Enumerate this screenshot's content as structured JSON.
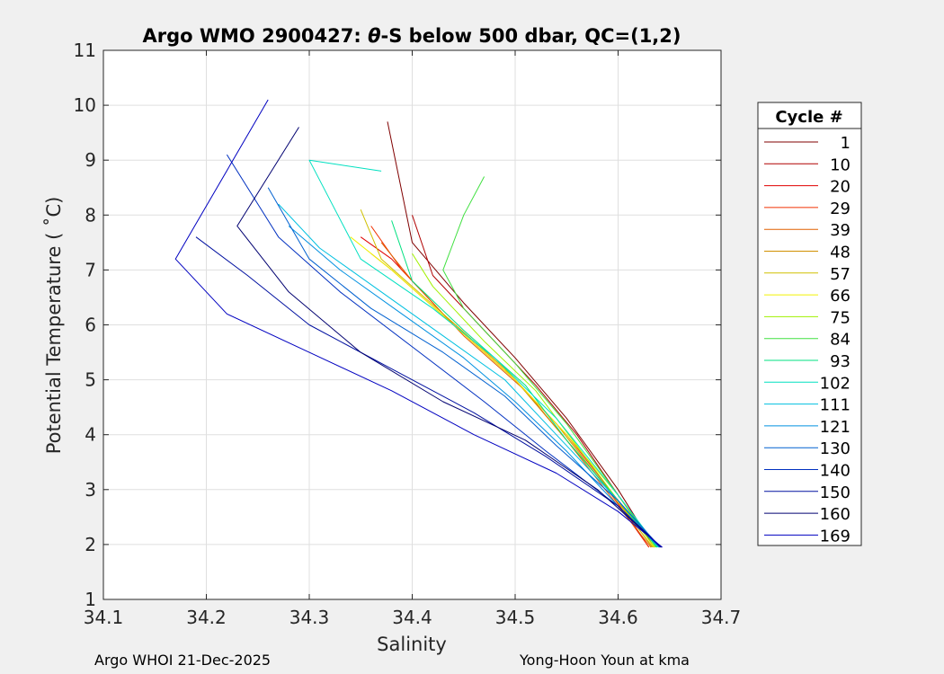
{
  "chart_data": {
    "type": "line",
    "title_parts": {
      "prefix": "Argo WMO 2900427: ",
      "theta": "θ",
      "suffix": "-S below 500 dbar,  QC=(1,2)"
    },
    "xlabel": "Salinity",
    "ylabel": "Potential Temperature ( ˚C)",
    "xlim": [
      34.1,
      34.7
    ],
    "ylim": [
      1,
      11
    ],
    "xticks": [
      34.1,
      34.2,
      34.3,
      34.4,
      34.5,
      34.6,
      34.7
    ],
    "xtick_labels": [
      "34.1",
      "34.2",
      "34.3",
      "34.4",
      "34.5",
      "34.6",
      "34.7"
    ],
    "yticks": [
      1,
      2,
      3,
      4,
      5,
      6,
      7,
      8,
      9,
      10,
      11
    ],
    "ytick_labels": [
      "1",
      "2",
      "3",
      "4",
      "5",
      "6",
      "7",
      "8",
      "9",
      "10",
      "11"
    ],
    "grid": true,
    "legend_position": "right-outside",
    "legend": {
      "title": "Cycle #",
      "entries": [
        {
          "label": "1",
          "color": "#800000"
        },
        {
          "label": "10",
          "color": "#b00000"
        },
        {
          "label": "20",
          "color": "#e00000"
        },
        {
          "label": "29",
          "color": "#f03000"
        },
        {
          "label": "39",
          "color": "#e06000"
        },
        {
          "label": "48",
          "color": "#d09000"
        },
        {
          "label": "57",
          "color": "#d0c000"
        },
        {
          "label": "66",
          "color": "#f0f000"
        },
        {
          "label": "75",
          "color": "#a0f000"
        },
        {
          "label": "84",
          "color": "#40e040"
        },
        {
          "label": "93",
          "color": "#00e080"
        },
        {
          "label": "102",
          "color": "#00e0c0"
        },
        {
          "label": "111",
          "color": "#00c0e0"
        },
        {
          "label": "121",
          "color": "#0090e0"
        },
        {
          "label": "130",
          "color": "#0060d0"
        },
        {
          "label": "140",
          "color": "#0030c0"
        },
        {
          "label": "150",
          "color": "#0010a0"
        },
        {
          "label": "160",
          "color": "#000070"
        },
        {
          "label": "169",
          "color": "#0000c0"
        }
      ]
    },
    "series": [
      {
        "name": "1",
        "color": "#800000",
        "x": [
          34.376,
          34.4,
          34.45,
          34.5,
          34.55,
          34.6,
          34.635
        ],
        "y": [
          9.7,
          7.5,
          6.4,
          5.4,
          4.3,
          3.0,
          1.95
        ]
      },
      {
        "name": "10",
        "color": "#b00000",
        "x": [
          34.4,
          34.42,
          34.47,
          34.52,
          34.56,
          34.6,
          34.635
        ],
        "y": [
          8.0,
          6.9,
          5.9,
          4.9,
          4.0,
          2.9,
          1.95
        ]
      },
      {
        "name": "20",
        "color": "#e00000",
        "x": [
          34.35,
          34.38,
          34.43,
          34.49,
          34.54,
          34.59,
          34.63
        ],
        "y": [
          7.6,
          7.2,
          6.2,
          5.2,
          4.2,
          3.0,
          1.95
        ]
      },
      {
        "name": "29",
        "color": "#f03000",
        "x": [
          34.36,
          34.39,
          34.44,
          34.5,
          34.55,
          34.6,
          34.63
        ],
        "y": [
          7.8,
          7.0,
          6.0,
          5.0,
          4.0,
          2.8,
          1.95
        ]
      },
      {
        "name": "39",
        "color": "#e06000",
        "x": [
          34.37,
          34.4,
          34.45,
          34.51,
          34.55,
          34.6,
          34.632
        ],
        "y": [
          7.5,
          6.8,
          5.8,
          4.8,
          3.9,
          2.7,
          1.95
        ]
      },
      {
        "name": "48",
        "color": "#d09000",
        "x": [
          34.36,
          34.38,
          34.44,
          34.5,
          34.55,
          34.6,
          34.633
        ],
        "y": [
          7.3,
          7.0,
          6.0,
          5.0,
          3.9,
          2.8,
          1.95
        ]
      },
      {
        "name": "57",
        "color": "#d0c000",
        "x": [
          34.35,
          34.37,
          34.43,
          34.49,
          34.54,
          34.59,
          34.634
        ],
        "y": [
          8.1,
          7.2,
          6.2,
          5.2,
          4.2,
          3.0,
          1.95
        ]
      },
      {
        "name": "66",
        "color": "#f0f000",
        "x": [
          34.34,
          34.38,
          34.44,
          34.5,
          34.55,
          34.6,
          34.635
        ],
        "y": [
          7.6,
          7.0,
          6.0,
          5.0,
          4.0,
          2.9,
          1.95
        ]
      },
      {
        "name": "75",
        "color": "#a0f000",
        "x": [
          34.4,
          34.42,
          34.47,
          34.52,
          34.56,
          34.6,
          34.636
        ],
        "y": [
          7.3,
          6.7,
          5.7,
          4.8,
          3.8,
          2.8,
          1.95
        ]
      },
      {
        "name": "84",
        "color": "#40e040",
        "x": [
          34.47,
          34.45,
          34.43,
          34.45,
          34.5,
          34.55,
          34.6,
          34.637
        ],
        "y": [
          8.7,
          8.0,
          7.0,
          6.3,
          5.3,
          4.2,
          2.9,
          1.95
        ]
      },
      {
        "name": "93",
        "color": "#00e080",
        "x": [
          34.38,
          34.4,
          34.45,
          34.51,
          34.55,
          34.6,
          34.638
        ],
        "y": [
          7.9,
          6.8,
          5.9,
          4.9,
          3.9,
          2.8,
          1.95
        ]
      },
      {
        "name": "102",
        "color": "#00e0c0",
        "x": [
          34.37,
          34.3,
          34.35,
          34.42,
          34.48,
          34.54,
          34.6,
          34.639
        ],
        "y": [
          8.8,
          9.0,
          7.2,
          6.3,
          5.4,
          4.3,
          2.9,
          1.95
        ]
      },
      {
        "name": "111",
        "color": "#00c0e0",
        "x": [
          34.27,
          34.31,
          34.37,
          34.43,
          34.49,
          34.54,
          34.6,
          34.64
        ],
        "y": [
          8.2,
          7.4,
          6.6,
          5.8,
          5.0,
          4.0,
          2.8,
          1.95
        ]
      },
      {
        "name": "121",
        "color": "#0090e0",
        "x": [
          34.28,
          34.33,
          34.39,
          34.45,
          34.5,
          34.55,
          34.6,
          34.64
        ],
        "y": [
          7.8,
          7.0,
          6.2,
          5.4,
          4.6,
          3.7,
          2.7,
          1.95
        ]
      },
      {
        "name": "130",
        "color": "#0060d0",
        "x": [
          34.26,
          34.3,
          34.36,
          34.43,
          34.49,
          34.54,
          34.6,
          34.641
        ],
        "y": [
          8.5,
          7.2,
          6.3,
          5.5,
          4.7,
          3.8,
          2.8,
          1.95
        ]
      },
      {
        "name": "140",
        "color": "#0030c0",
        "x": [
          34.22,
          34.27,
          34.33,
          34.4,
          34.47,
          34.53,
          34.6,
          34.641
        ],
        "y": [
          9.1,
          7.6,
          6.6,
          5.6,
          4.6,
          3.7,
          2.7,
          1.95
        ]
      },
      {
        "name": "150",
        "color": "#0010a0",
        "x": [
          34.19,
          34.24,
          34.3,
          34.38,
          34.46,
          34.53,
          34.6,
          34.642
        ],
        "y": [
          7.6,
          6.9,
          6.0,
          5.2,
          4.4,
          3.6,
          2.7,
          1.95
        ]
      },
      {
        "name": "160",
        "color": "#000070",
        "x": [
          34.29,
          34.23,
          34.28,
          34.35,
          34.43,
          34.51,
          34.58,
          34.642
        ],
        "y": [
          9.6,
          7.8,
          6.6,
          5.5,
          4.6,
          3.9,
          3.0,
          1.95
        ]
      },
      {
        "name": "169",
        "color": "#0000c0",
        "x": [
          34.26,
          34.17,
          34.22,
          34.3,
          34.38,
          34.46,
          34.54,
          34.6,
          34.643
        ],
        "y": [
          10.1,
          7.2,
          6.2,
          5.5,
          4.8,
          4.0,
          3.3,
          2.6,
          1.95
        ]
      }
    ]
  },
  "footer": {
    "left": "Argo WHOI 21-Dec-2025",
    "right": "Yong-Hoon Youn at kma"
  }
}
